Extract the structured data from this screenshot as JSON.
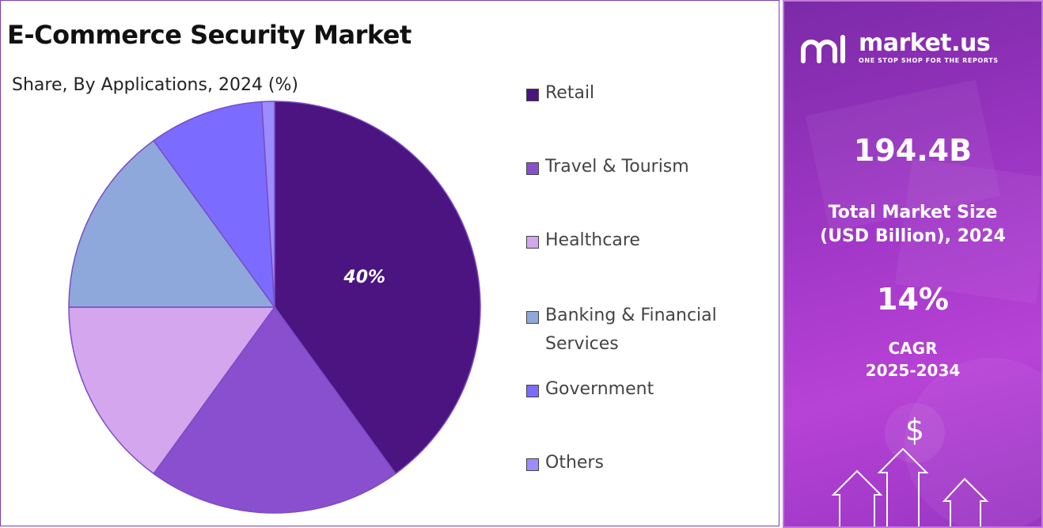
{
  "title": "E-Commerce Security Market",
  "subtitle": "Share, By Applications, 2024 (%)",
  "chart_data": {
    "type": "pie",
    "categories": [
      "Retail",
      "Travel & Tourism",
      "Healthcare",
      "Banking & Financial Services",
      "Government",
      "Others"
    ],
    "values": [
      40,
      20,
      15,
      15,
      9,
      1
    ],
    "colors": [
      "#4b1480",
      "#8a4fcf",
      "#d4a6ee",
      "#8ea8db",
      "#7b6cff",
      "#9b8cff"
    ],
    "data_labels": [
      "40%",
      "",
      "",
      "",
      "",
      ""
    ],
    "legend_position": "right"
  },
  "sidebar": {
    "brand": "market.us",
    "tagline": "ONE STOP SHOP FOR THE REPORTS",
    "market_size_value": "194.4B",
    "market_size_label_line1": "Total Market Size",
    "market_size_label_line2": "(USD Billion), 2024",
    "cagr_value": "14%",
    "cagr_label_line1": "CAGR",
    "cagr_label_line2": "2025-2034",
    "icons": [
      "logo-icon",
      "dollar-icon",
      "up-arrow-icon"
    ]
  }
}
